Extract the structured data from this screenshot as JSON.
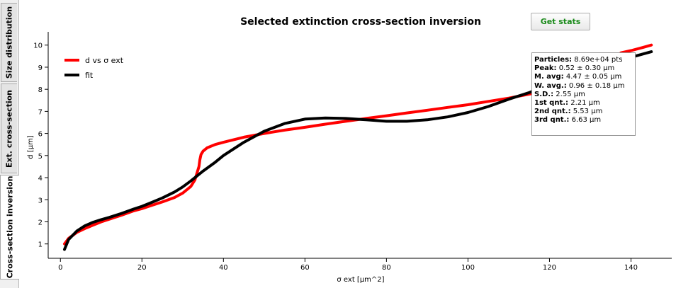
{
  "tabs": [
    {
      "label": "Size distribution",
      "active": false
    },
    {
      "label": "Ext. cross-section",
      "active": false
    },
    {
      "label": "Cross-section inversion",
      "active": true
    }
  ],
  "toolbar": {
    "get_stats_label": "Get stats"
  },
  "stats": [
    {
      "label": "Particles:",
      "value": "8.69e+04 pts"
    },
    {
      "label": "Peak:",
      "value": "0.52 ± 0.30 µm"
    },
    {
      "label": "M. avg:",
      "value": "4.47 ± 0.05 µm"
    },
    {
      "label": "W. avg.:",
      "value": "0.96 ± 0.18 µm"
    },
    {
      "label": "S.D.:",
      "value": "2.55 µm"
    },
    {
      "label": "1st qnt.:",
      "value": "2.21 µm"
    },
    {
      "label": "2nd qnt.:",
      "value": "5.53 µm"
    },
    {
      "label": "3rd qnt.:",
      "value": "6.63 µm"
    }
  ],
  "chart_data": {
    "type": "line",
    "title": "Selected extinction cross-section inversion",
    "xlabel": "σ ext [µm^2]",
    "ylabel": "d [µm]",
    "xlim": [
      -3,
      150
    ],
    "ylim": [
      0.35,
      10.6
    ],
    "xticks": [
      0,
      20,
      40,
      60,
      80,
      100,
      120,
      140
    ],
    "yticks": [
      1,
      2,
      3,
      4,
      5,
      6,
      7,
      8,
      9,
      10
    ],
    "grid": false,
    "legend_position": "top-left",
    "series": [
      {
        "name": "d vs σ ext",
        "color": "#ff0000",
        "x": [
          1,
          2,
          4,
          6,
          8,
          10,
          12,
          15,
          18,
          20,
          22,
          25,
          28,
          30,
          32,
          33,
          33.5,
          34,
          34.2,
          34.5,
          35,
          36,
          38,
          40,
          45,
          50,
          55,
          60,
          65,
          70,
          75,
          80,
          85,
          90,
          95,
          100,
          105,
          110,
          115,
          120,
          125,
          130,
          135,
          137,
          137.5,
          140,
          143,
          145
        ],
        "y": [
          1.0,
          1.25,
          1.52,
          1.7,
          1.85,
          2.0,
          2.12,
          2.3,
          2.5,
          2.6,
          2.72,
          2.9,
          3.1,
          3.3,
          3.6,
          3.9,
          4.2,
          4.5,
          4.8,
          5.05,
          5.2,
          5.35,
          5.5,
          5.6,
          5.83,
          6.0,
          6.15,
          6.28,
          6.42,
          6.55,
          6.68,
          6.8,
          6.93,
          7.05,
          7.18,
          7.3,
          7.45,
          7.6,
          7.78,
          7.95,
          8.15,
          8.5,
          9.0,
          9.25,
          9.65,
          9.75,
          9.9,
          10.0
        ]
      },
      {
        "name": "fit",
        "color": "#000000",
        "x": [
          1,
          2,
          4,
          6,
          8,
          10,
          12,
          15,
          18,
          20,
          22,
          25,
          28,
          30,
          32,
          35,
          38,
          40,
          45,
          50,
          55,
          60,
          65,
          70,
          75,
          80,
          85,
          90,
          95,
          100,
          105,
          110,
          115,
          120,
          125,
          130,
          135,
          140,
          145
        ],
        "y": [
          0.75,
          1.2,
          1.58,
          1.82,
          1.98,
          2.1,
          2.2,
          2.38,
          2.58,
          2.7,
          2.85,
          3.08,
          3.35,
          3.58,
          3.85,
          4.3,
          4.7,
          5.0,
          5.6,
          6.1,
          6.45,
          6.65,
          6.7,
          6.68,
          6.62,
          6.55,
          6.55,
          6.62,
          6.75,
          6.95,
          7.22,
          7.55,
          7.85,
          8.2,
          8.55,
          8.88,
          9.18,
          9.45,
          9.7
        ]
      }
    ]
  }
}
